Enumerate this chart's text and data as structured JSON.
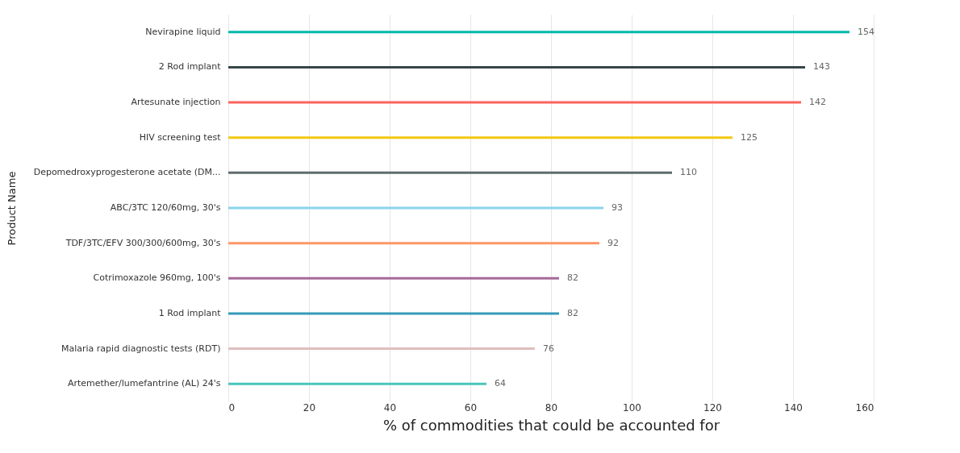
{
  "chart_data": {
    "type": "bar",
    "orientation": "horizontal",
    "xlabel": "% of commodities that could be accounted for",
    "ylabel": "Product Name",
    "categories": [
      "Nevirapine liquid",
      "2 Rod implant",
      "Artesunate injection",
      "HIV screening test",
      "Depomedroxyprogesterone acetate (DM...",
      "ABC/3TC 120/60mg, 30's",
      "TDF/3TC/EFV 300/300/600mg, 30's",
      "Cotrimoxazole 960mg, 100's",
      "1 Rod implant",
      "Malaria rapid diagnostic tests (RDT)",
      "Artemether/lumefantrine (AL) 24's"
    ],
    "values": [
      154,
      143,
      142,
      125,
      110,
      93,
      92,
      82,
      82,
      76,
      64
    ],
    "colors": [
      "#01b8aa",
      "#374649",
      "#fd625e",
      "#f2c80f",
      "#5f6b6d",
      "#8ad4eb",
      "#fe9666",
      "#a66999",
      "#3599b8",
      "#dfbfbf",
      "#4ac5bb"
    ],
    "xlim": [
      0,
      160
    ],
    "xticks": [
      0,
      20,
      40,
      60,
      80,
      100,
      120,
      140,
      160
    ],
    "grid": "x",
    "data_labels": true
  }
}
